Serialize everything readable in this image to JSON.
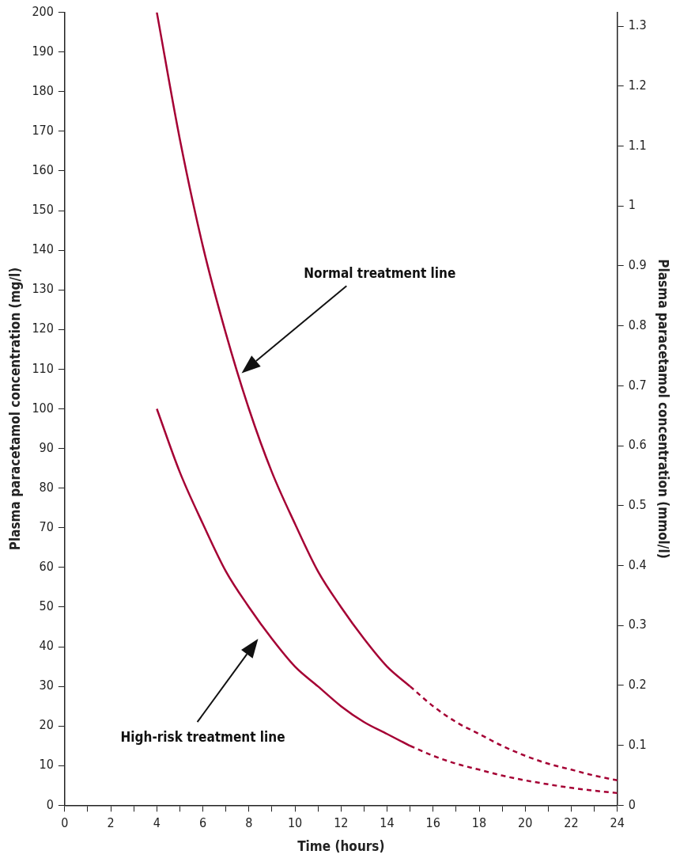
{
  "chart_data": {
    "type": "line",
    "xlabel": "Time (hours)",
    "ylabel": "Plasma paracetamol concentration (mg/l)",
    "y2label": "Plasma paracetamol concentration (mmol/l)",
    "series": [
      {
        "color": "#a50034",
        "line_style": "solid",
        "x": [
          4,
          5,
          6,
          7,
          8,
          9,
          10,
          11,
          12,
          13,
          14,
          15
        ],
        "values": [
          200,
          168,
          141,
          119,
          100,
          84,
          71,
          59,
          50,
          42,
          35,
          30
        ]
      },
      {
        "color": "#a50034",
        "line_style": "dashed",
        "x": [
          15,
          16,
          17,
          18,
          19,
          20,
          21,
          22,
          23,
          24
        ],
        "values": [
          30,
          25,
          21,
          18,
          15,
          12.5,
          10.5,
          9,
          7.5,
          6.3
        ]
      },
      {
        "color": "#a50034",
        "line_style": "solid",
        "x": [
          4,
          5,
          6,
          7,
          8,
          9,
          10,
          11,
          12,
          13,
          14,
          15
        ],
        "values": [
          100,
          84,
          71,
          59,
          50,
          42,
          35,
          30,
          25,
          21,
          18,
          15
        ]
      },
      {
        "color": "#a50034",
        "line_style": "dashed",
        "x": [
          15,
          16,
          17,
          18,
          19,
          20,
          21,
          22,
          23,
          24
        ],
        "values": [
          15,
          12.5,
          10.5,
          9,
          7.5,
          6.3,
          5.3,
          4.4,
          3.7,
          3.1
        ]
      }
    ],
    "xlim": [
      0,
      24
    ],
    "xticks": [
      0,
      {
        "value": 1,
        "label": null
      },
      2,
      {
        "value": 3,
        "label": null
      },
      4,
      {
        "value": 5,
        "label": null
      },
      6,
      {
        "value": 7,
        "label": null
      },
      8,
      {
        "value": 9,
        "label": null
      },
      10,
      {
        "value": 11,
        "label": null
      },
      12,
      {
        "value": 13,
        "label": null
      },
      14,
      {
        "value": 15,
        "label": null
      },
      16,
      {
        "value": 17,
        "label": null
      },
      18,
      {
        "value": 19,
        "label": null
      },
      20,
      {
        "value": 21,
        "label": null
      },
      22,
      {
        "value": 23,
        "label": null
      },
      24
    ],
    "ylim": [
      0,
      200
    ],
    "yticks": [
      0,
      10,
      20,
      30,
      40,
      50,
      60,
      70,
      80,
      90,
      100,
      110,
      120,
      130,
      140,
      150,
      160,
      170,
      180,
      190,
      200
    ],
    "y2lim": [
      0,
      1.323
    ],
    "y2ticks": [
      0,
      0.1,
      0.2,
      0.3,
      0.4,
      0.5,
      0.6,
      0.7,
      0.8,
      0.9,
      1,
      1.1,
      1.2,
      1.3
    ],
    "grid": false,
    "legend": false,
    "marker": "none",
    "annotations": [
      "Normal treatment line",
      "High-risk treatment line"
    ]
  }
}
